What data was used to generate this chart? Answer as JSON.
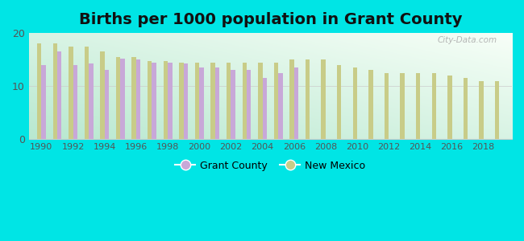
{
  "title": "Births per 1000 population in Grant County",
  "years": [
    1990,
    1991,
    1992,
    1993,
    1994,
    1995,
    1996,
    1997,
    1998,
    1999,
    2000,
    2001,
    2002,
    2003,
    2004,
    2005,
    2006,
    2007,
    2008,
    2009,
    2010,
    2011,
    2012,
    2013,
    2014,
    2015,
    2016,
    2017,
    2018,
    2019
  ],
  "grant_values": [
    14.0,
    16.5,
    14.0,
    14.2,
    13.0,
    15.2,
    15.0,
    14.5,
    14.5,
    14.3,
    13.5,
    13.5,
    13.0,
    13.0,
    11.5,
    12.5,
    13.5,
    0,
    0,
    0,
    0,
    0,
    0,
    0,
    0,
    0,
    0,
    0,
    0,
    0
  ],
  "grant_show": [
    1,
    1,
    1,
    1,
    1,
    1,
    1,
    1,
    1,
    1,
    1,
    1,
    1,
    1,
    1,
    1,
    1,
    0,
    0,
    0,
    0,
    0,
    0,
    0,
    0,
    0,
    0,
    0,
    0,
    0
  ],
  "nm_values": [
    18.0,
    18.0,
    17.5,
    17.5,
    16.5,
    15.5,
    15.5,
    14.8,
    14.8,
    14.5,
    14.5,
    14.5,
    14.5,
    14.5,
    14.5,
    14.5,
    15.0,
    15.0,
    15.0,
    14.0,
    13.5,
    13.0,
    12.5,
    12.5,
    12.5,
    12.5,
    12.0,
    11.5,
    11.0,
    11.0
  ],
  "grant_color": "#c8a8d8",
  "nm_color": "#c8cc88",
  "bg_color": "#00e5e5",
  "plot_bg_tl": "#b8e8d8",
  "plot_bg_br": "#f0fff8",
  "ylim": [
    0,
    20
  ],
  "yticks": [
    0,
    10,
    20
  ],
  "title_fontsize": 14,
  "watermark": "City-Data.com"
}
